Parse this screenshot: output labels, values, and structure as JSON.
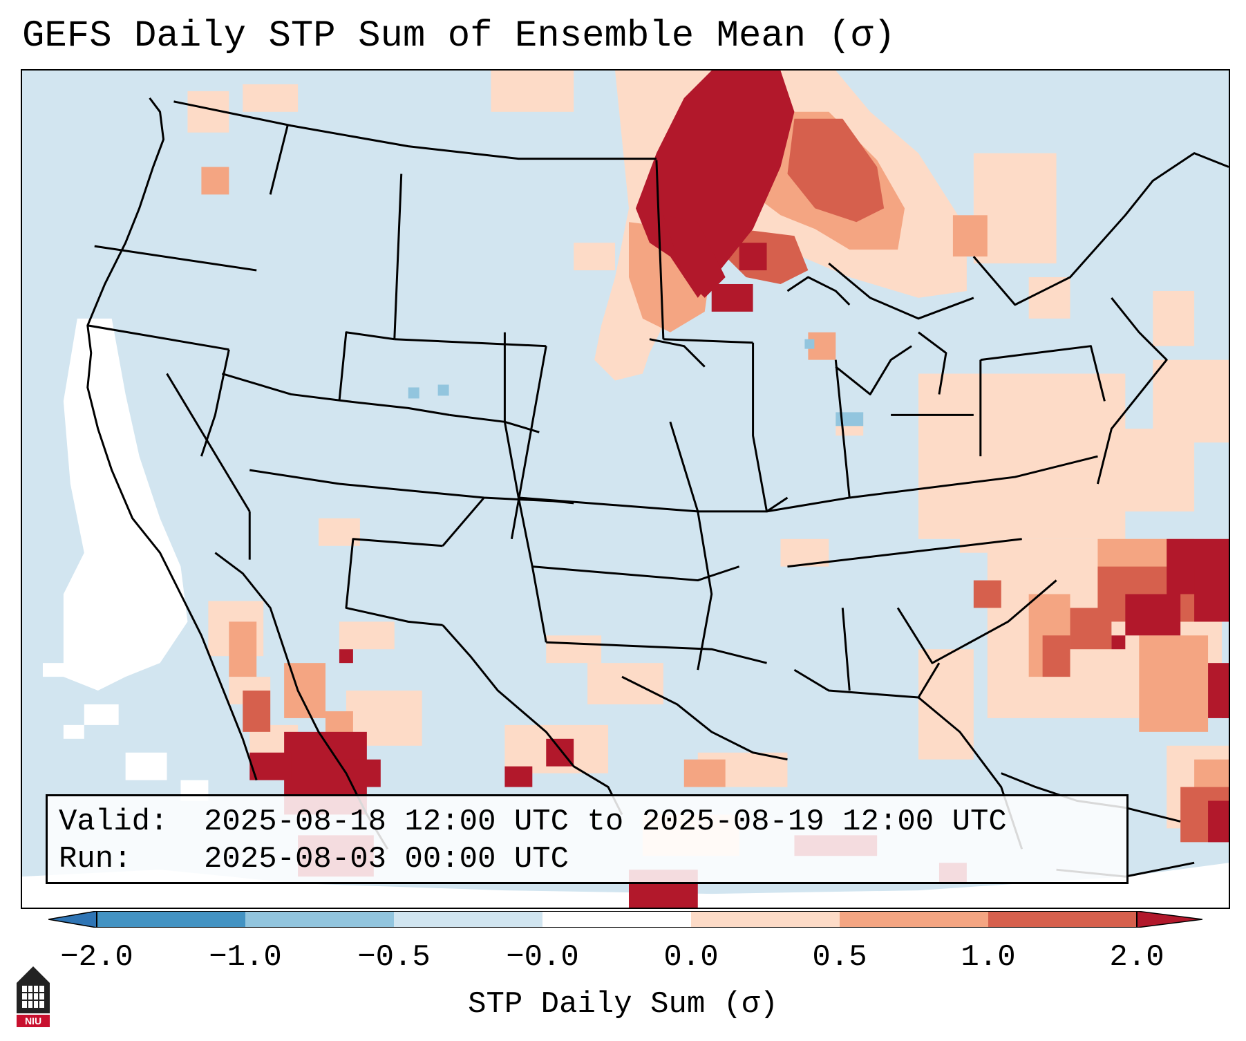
{
  "title": "GEFS Daily STP Sum of Ensemble Mean (σ)",
  "info": {
    "valid_label": "Valid:",
    "valid_value": "2025-08-18 12:00 UTC to 2025-08-19 12:00 UTC",
    "run_label": "Run:",
    "run_value": "2025-08-03 00:00 UTC"
  },
  "colorbar": {
    "label": "STP Daily Sum (σ)",
    "ticks": [
      "−2.0",
      "−1.0",
      "−0.5",
      "−0.0",
      "0.0",
      "0.5",
      "1.0",
      "2.0"
    ],
    "colors": [
      "#2f75b5",
      "#4393c3",
      "#92c5de",
      "#d1e5f0",
      "#ffffff",
      "#fddbc7",
      "#f4a582",
      "#d6604d",
      "#b2182b"
    ]
  },
  "logo": {
    "text": "NIU"
  }
}
